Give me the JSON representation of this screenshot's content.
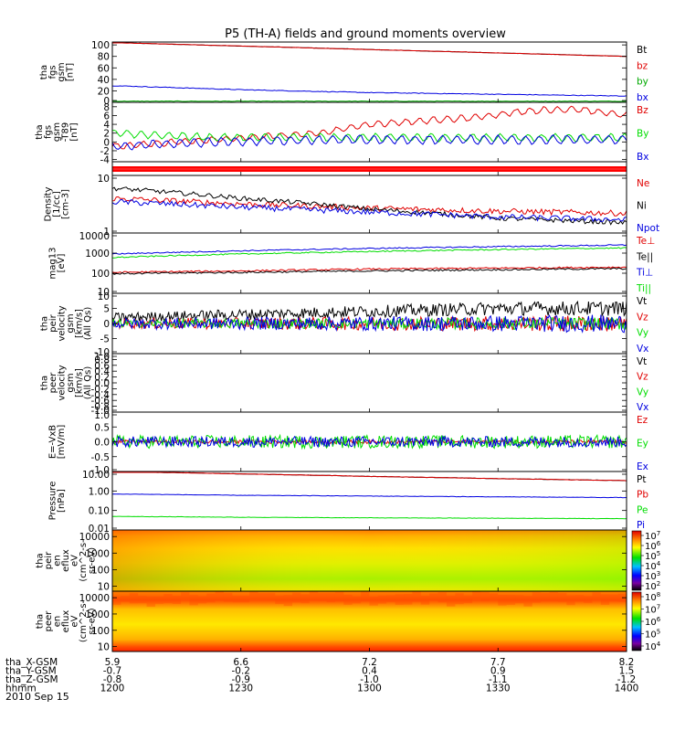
{
  "title": "P5 (TH-A) fields and ground moments overview",
  "date_label": "2010 Sep 15",
  "orbit_rows": [
    {
      "label": "tha_X-GSM",
      "values": [
        "5.9",
        "6.6",
        "7.2",
        "7.7",
        "8.2"
      ]
    },
    {
      "label": "tha_Y-GSM",
      "values": [
        "-0.7",
        "-0.2",
        "0.4",
        "0.9",
        "1.5"
      ]
    },
    {
      "label": "tha_Z-GSM",
      "values": [
        "-0.8",
        "-0.9",
        "-1.0",
        "-1.1",
        "-1.2"
      ]
    },
    {
      "label": "hhmm",
      "values": [
        "1200",
        "1230",
        "1300",
        "1330",
        "1400"
      ]
    }
  ],
  "colors": {
    "black": "#000000",
    "red": "#e00000",
    "green": "#00dd00",
    "blue": "#0000e0"
  },
  "chart_data": [
    {
      "type": "line",
      "panel": "fgs",
      "ylabel": [
        "tha",
        "fgs",
        "gsm",
        "[nT]"
      ],
      "yticks": [
        "100",
        "80",
        "60",
        "40",
        "20",
        "0"
      ],
      "ylim": [
        0,
        105
      ],
      "legend": [
        {
          "name": "Bt",
          "color": "#000000"
        },
        {
          "name": "bz",
          "color": "#e00000"
        },
        {
          "name": "by",
          "color": "#00aa00"
        },
        {
          "name": "bx",
          "color": "#0000e0"
        }
      ],
      "x": [
        12.0,
        12.5,
        13.0,
        13.5,
        14.0
      ],
      "series": [
        {
          "name": "Bt",
          "values": [
            104,
            98,
            92,
            86,
            80
          ]
        },
        {
          "name": "bz",
          "values": [
            104,
            98,
            92,
            86,
            80
          ]
        },
        {
          "name": "by",
          "values": [
            2,
            2,
            2,
            2,
            2
          ]
        },
        {
          "name": "bx",
          "values": [
            29,
            22,
            17,
            14,
            11
          ]
        }
      ]
    },
    {
      "type": "line",
      "panel": "fgs-t89",
      "ylabel": [
        "tha",
        "fgs",
        "gsm",
        "-T89",
        "[nT]"
      ],
      "yticks": [
        "8",
        "6",
        "4",
        "2",
        "0",
        "-2",
        "-4"
      ],
      "ylim": [
        -4.5,
        9
      ],
      "legend": [
        {
          "name": "Bz",
          "color": "#e00000"
        },
        {
          "name": "By",
          "color": "#00dd00"
        },
        {
          "name": "Bx",
          "color": "#0000e0"
        }
      ],
      "x": [
        12.0,
        12.4,
        12.8,
        13.0,
        13.4,
        13.6,
        13.8,
        14.0
      ],
      "series": [
        {
          "name": "Bz",
          "values": [
            -1,
            0.5,
            2,
            4,
            5.5,
            7,
            7.5,
            6
          ]
        },
        {
          "name": "By",
          "values": [
            2,
            1,
            1,
            1,
            1,
            1,
            1,
            1
          ]
        },
        {
          "name": "Bx",
          "values": [
            -1,
            0,
            0.5,
            0.5,
            0.5,
            0.5,
            0.5,
            0.5
          ]
        }
      ]
    },
    {
      "type": "bar",
      "panel": "flags",
      "series": [
        {
          "name": "flag",
          "values": [
            1
          ]
        }
      ]
    },
    {
      "type": "line",
      "panel": "density",
      "ylabel": [
        "Density",
        "[1/cc]",
        "[cm-3]"
      ],
      "yticks": [
        "10",
        "1"
      ],
      "ylim": [
        1,
        10
      ],
      "yscale": "log",
      "legend": [
        {
          "name": "Ne",
          "color": "#e00000"
        },
        {
          "name": "Ni",
          "color": "#000000"
        },
        {
          "name": "Npot",
          "color": "#0000e0"
        }
      ],
      "x": [
        12.0,
        12.5,
        13.0,
        13.5,
        14.0
      ],
      "series": [
        {
          "name": "Ne",
          "values": [
            4,
            3.2,
            2.7,
            2.4,
            2.2
          ]
        },
        {
          "name": "Ni",
          "values": [
            6,
            4,
            2.6,
            1.8,
            1.5
          ]
        },
        {
          "name": "Npot",
          "values": [
            3.5,
            2.8,
            2.3,
            1.9,
            1.7
          ]
        }
      ]
    },
    {
      "type": "line",
      "panel": "temperature",
      "ylabel": [
        "mag13",
        "[eV]"
      ],
      "yticks": [
        "10000",
        "1000",
        "100",
        "10"
      ],
      "ylim": [
        10,
        10000
      ],
      "yscale": "log",
      "legend": [
        {
          "name": "Te⊥",
          "color": "#e00000"
        },
        {
          "name": "Te||",
          "color": "#000000"
        },
        {
          "name": "Ti⊥",
          "color": "#0000e0"
        },
        {
          "name": "Ti||",
          "color": "#00dd00"
        }
      ],
      "x": [
        12.0,
        12.5,
        13.0,
        13.5,
        14.0
      ],
      "series": [
        {
          "name": "Te⊥",
          "values": [
            110,
            130,
            160,
            180,
            200
          ]
        },
        {
          "name": "Te||",
          "values": [
            95,
            110,
            130,
            150,
            170
          ]
        },
        {
          "name": "Ti⊥",
          "values": [
            900,
            1300,
            1700,
            2100,
            2500
          ]
        },
        {
          "name": "Ti||",
          "values": [
            600,
            900,
            1200,
            1500,
            1800
          ]
        }
      ]
    },
    {
      "type": "line",
      "panel": "ion-velocity",
      "ylabel": [
        "tha",
        "peir",
        "velocity",
        "gsm",
        "[km/s]",
        "(All Qs)"
      ],
      "yticks": [
        "10",
        "5",
        "0",
        "-5",
        "-10"
      ],
      "ylim": [
        -10,
        10
      ],
      "legend": [
        {
          "name": "Vt",
          "color": "#000000"
        },
        {
          "name": "Vz",
          "color": "#e00000"
        },
        {
          "name": "Vy",
          "color": "#00dd00"
        },
        {
          "name": "Vx",
          "color": "#0000e0"
        }
      ],
      "x": [
        12.0,
        12.5,
        13.0,
        13.5,
        14.0
      ],
      "series": [
        {
          "name": "Vt",
          "values": [
            2,
            3,
            4,
            5,
            5
          ]
        },
        {
          "name": "Vz",
          "values": [
            0,
            0,
            0,
            0,
            0
          ]
        },
        {
          "name": "Vy",
          "values": [
            0,
            0,
            0,
            0,
            0
          ]
        },
        {
          "name": "Vx",
          "values": [
            0,
            0,
            0,
            0,
            0
          ]
        }
      ]
    },
    {
      "type": "line",
      "panel": "electron-velocity",
      "ylabel": [
        "tha",
        "peer",
        "velocity",
        "gsm",
        "[km/s]",
        "(All Qs)"
      ],
      "yticks": [
        "1.0",
        "0.8",
        "0.6",
        "0.4",
        "0.2",
        "0.0",
        "-0.2",
        "-0.4",
        "-0.6",
        "-0.8",
        "-1.0"
      ],
      "ylim": [
        -1,
        1
      ],
      "legend": [
        {
          "name": "Vt",
          "color": "#000000"
        },
        {
          "name": "Vz",
          "color": "#e00000"
        },
        {
          "name": "Vy",
          "color": "#00dd00"
        },
        {
          "name": "Vx",
          "color": "#0000e0"
        }
      ],
      "series": []
    },
    {
      "type": "line",
      "panel": "efield",
      "ylabel": [
        "E=-VxB",
        "[mV/m]"
      ],
      "yticks": [
        "1.0",
        "0.5",
        "0.0",
        "-0.5",
        "-1.0"
      ],
      "ylim": [
        -1,
        1
      ],
      "legend": [
        {
          "name": "Ez",
          "color": "#e00000"
        },
        {
          "name": "Ey",
          "color": "#00dd00"
        },
        {
          "name": "Ex",
          "color": "#0000e0"
        }
      ],
      "x": [
        12.0,
        12.5,
        13.0,
        13.5,
        14.0
      ],
      "series": [
        {
          "name": "Ez",
          "values": [
            0,
            0,
            0,
            0,
            0
          ]
        },
        {
          "name": "Ey",
          "values": [
            0,
            0,
            0,
            0,
            0
          ]
        },
        {
          "name": "Ex",
          "values": [
            0,
            0,
            0,
            0,
            0
          ]
        }
      ]
    },
    {
      "type": "line",
      "panel": "pressure",
      "ylabel": [
        "Pressure",
        "[nPa]"
      ],
      "yticks": [
        "10.00",
        "1.00",
        "0.10",
        "0.01"
      ],
      "ylim": [
        0.01,
        10
      ],
      "yscale": "log",
      "legend": [
        {
          "name": "Pt",
          "color": "#000000"
        },
        {
          "name": "Pb",
          "color": "#e00000"
        },
        {
          "name": "Pe",
          "color": "#00dd00"
        },
        {
          "name": "Pi",
          "color": "#0000e0"
        }
      ],
      "x": [
        12.0,
        12.5,
        13.0,
        13.5,
        14.0
      ],
      "series": [
        {
          "name": "Pt",
          "values": [
            10,
            7.5,
            5.6,
            4.3,
            3.4
          ]
        },
        {
          "name": "Pb",
          "values": [
            10,
            7.5,
            5.6,
            4.3,
            3.4
          ]
        },
        {
          "name": "Pe",
          "values": [
            0.05,
            0.045,
            0.042,
            0.04,
            0.038
          ]
        },
        {
          "name": "Pi",
          "values": [
            0.7,
            0.6,
            0.55,
            0.5,
            0.46
          ]
        }
      ]
    },
    {
      "type": "heatmap",
      "panel": "ion-spectrogram",
      "ylabel": [
        "tha",
        "peir",
        "en",
        "eflux",
        "eV",
        "(cm^2-s-",
        "sr-eV)"
      ],
      "yticks": [
        "10000",
        "1000",
        "100",
        "10"
      ],
      "ylim": [
        5,
        25000
      ],
      "yscale": "log",
      "colorbar_ticks": [
        "10^7",
        "10^6",
        "10^5",
        "10^4",
        "10^3",
        "10^2"
      ]
    },
    {
      "type": "heatmap",
      "panel": "electron-spectrogram",
      "ylabel": [
        "tha",
        "peer",
        "en",
        "eflux",
        "eV",
        "(cm^2-s-",
        "sr-eV)"
      ],
      "yticks": [
        "10000",
        "1000",
        "100",
        "10"
      ],
      "ylim": [
        5,
        25000
      ],
      "yscale": "log",
      "colorbar_ticks": [
        "10^8",
        "10^7",
        "10^6",
        "10^5",
        "10^4"
      ]
    }
  ]
}
